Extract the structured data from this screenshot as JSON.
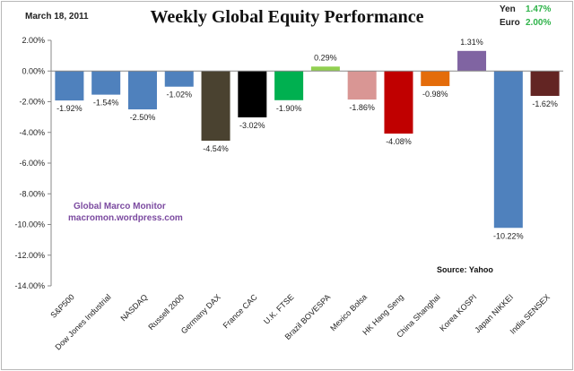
{
  "header": {
    "date": "March 18, 2011",
    "fx": [
      {
        "label": "Yen",
        "value": "1.47%"
      },
      {
        "label": "Euro",
        "value": "2.00%"
      }
    ]
  },
  "watermark": {
    "line1": "Global Marco Monitor",
    "line2": "macromon.wordpress.com"
  },
  "source": "Source:  Yahoo",
  "chart_data": {
    "type": "bar",
    "title": "Weekly Global Equity Performance",
    "categories": [
      "S&P500",
      "Dow Jones Industrial",
      "NASDAQ",
      "Russell 2000",
      "Germany DAX",
      "France CAC",
      "U.K. FTSE",
      "Brazil BOVESPA",
      "Mexico Bolsa",
      "HK  Hang Seng",
      "China Shanghai",
      "Korea KOSPI",
      "Japan NIKKEI",
      "India SENSEX"
    ],
    "values": [
      -1.92,
      -1.54,
      -2.5,
      -1.02,
      -4.54,
      -3.02,
      -1.9,
      0.29,
      -1.86,
      -4.08,
      -0.98,
      1.31,
      -10.22,
      -1.62
    ],
    "data_labels": [
      "-1.92%",
      "-1.54%",
      "-2.50%",
      "-1.02%",
      "-4.54%",
      "-3.02%",
      "-1.90%",
      "0.29%",
      "-1.86%",
      "-4.08%",
      "-0.98%",
      "1.31%",
      "-10.22%",
      "-1.62%"
    ],
    "colors": [
      "#4f81bd",
      "#4f81bd",
      "#4f81bd",
      "#4f81bd",
      "#4a4230",
      "#000000",
      "#00b050",
      "#92d050",
      "#d99694",
      "#c00000",
      "#e46c0a",
      "#8064a2",
      "#4f81bd",
      "#632523"
    ],
    "ylim": [
      -14,
      2
    ],
    "yticks": [
      2,
      0,
      -2,
      -4,
      -6,
      -8,
      -10,
      -12,
      -14
    ],
    "ytick_labels": [
      "2.00%",
      "0.00%",
      "-2.00%",
      "-4.00%",
      "-6.00%",
      "-8.00%",
      "-10.00%",
      "-12.00%",
      "-14.00%"
    ],
    "grid": false,
    "legend": "none"
  }
}
